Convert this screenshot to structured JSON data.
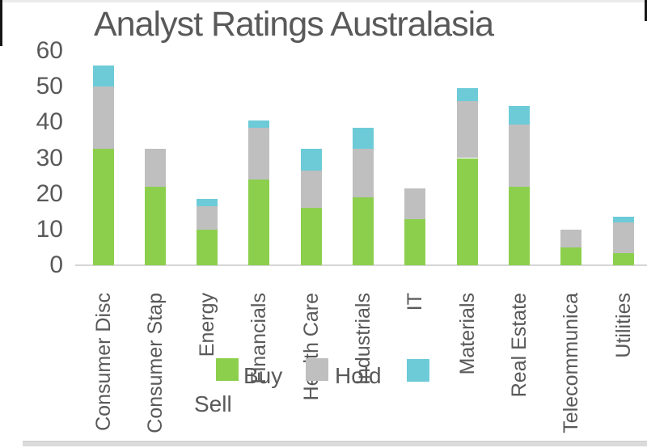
{
  "title": "Analyst Ratings Australasia",
  "chart_data": {
    "type": "bar",
    "stacked": true,
    "title": "Analyst Ratings Australasia",
    "categories": [
      "Consumer Disc",
      "Consumer Stap",
      "Energy",
      "Financials",
      "Health Care",
      "Industrials",
      "IT",
      "Materials",
      "Real Estate",
      "Telecommunica",
      "Utilities"
    ],
    "series": [
      {
        "name": "Buy",
        "color": "#8ccf4d",
        "values": [
          32.5,
          22,
          10,
          24,
          16,
          19,
          13,
          30,
          22,
          5,
          3.5
        ]
      },
      {
        "name": "Hold",
        "color": "#bfbfbf",
        "values": [
          17.5,
          10.5,
          6.5,
          14.5,
          10.5,
          13.5,
          8.5,
          16,
          17.5,
          5,
          8.5
        ]
      },
      {
        "name": "Sell",
        "color": "#6dcbd8",
        "values": [
          6,
          0,
          2,
          2,
          6,
          6,
          0,
          3.5,
          5,
          0,
          1.5
        ]
      }
    ],
    "totals": [
      56,
      32.5,
      18.5,
      40.5,
      32.5,
      38.5,
      21.5,
      49.5,
      44.5,
      10,
      13.5
    ],
    "y_ticks": [
      0,
      10,
      20,
      30,
      40,
      50,
      60
    ],
    "ylim": [
      0,
      60
    ],
    "grid": false,
    "legend_position": "bottom-overlapping-category-labels",
    "x_tick_label_rotation_degrees": -90
  },
  "legend": {
    "buy_label": "Buy",
    "hold_label": "Hold",
    "sell_label": "Sell",
    "buy_color": "#8ccf4d",
    "hold_color": "#bfbfbf",
    "sell_color": "#6dcbd8"
  },
  "colors": {
    "title_text": "#595959",
    "axis_text": "#595959",
    "axis_line": "#d6d6d6"
  }
}
